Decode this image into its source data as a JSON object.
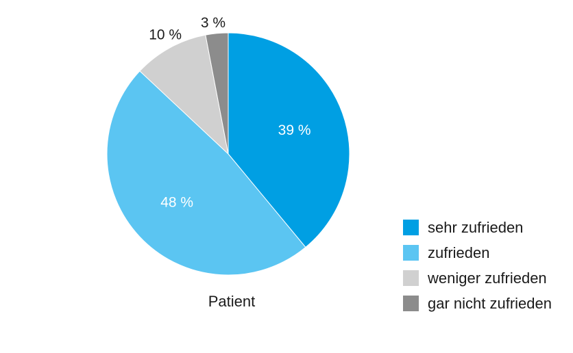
{
  "chart_data": {
    "type": "pie",
    "caption": "Patient",
    "slices": [
      {
        "label": "sehr zufrieden",
        "value": 39,
        "display": "39 %",
        "color": "#009fe3",
        "label_color": "#ffffff"
      },
      {
        "label": "zufrieden",
        "value": 48,
        "display": "48 %",
        "color": "#5bc5f2",
        "label_color": "#ffffff"
      },
      {
        "label": "weniger zufrieden",
        "value": 10,
        "display": "10 %",
        "color": "#d0d0d0",
        "label_color": "#1a1a1a"
      },
      {
        "label": "gar nicht zufrieden",
        "value": 3,
        "display": "3 %",
        "color": "#8c8c8c",
        "label_color": "#1a1a1a"
      }
    ],
    "legend_position": "right-bottom"
  }
}
